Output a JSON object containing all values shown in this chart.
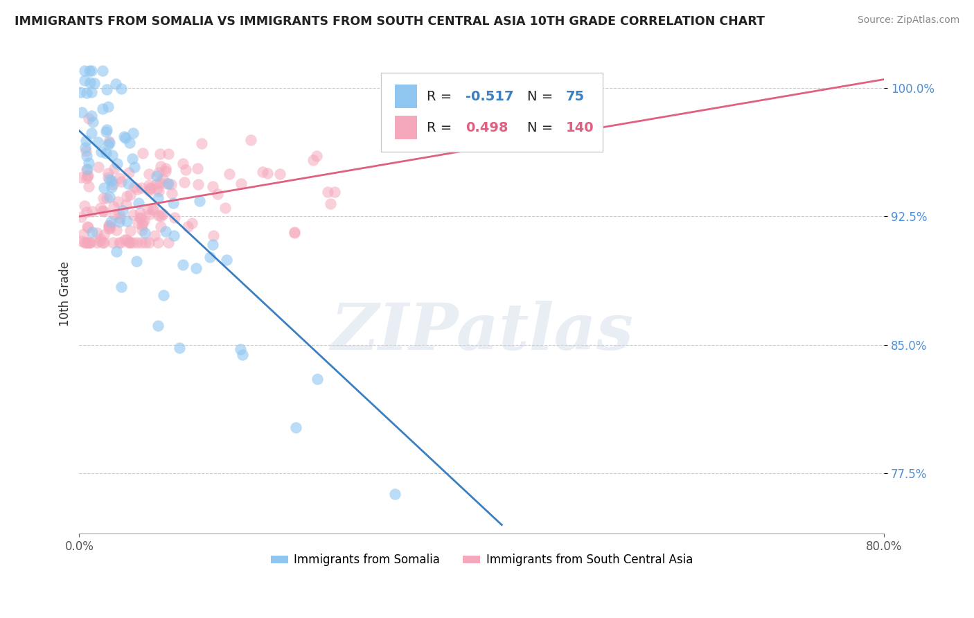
{
  "title": "IMMIGRANTS FROM SOMALIA VS IMMIGRANTS FROM SOUTH CENTRAL ASIA 10TH GRADE CORRELATION CHART",
  "source": "Source: ZipAtlas.com",
  "ylabel": "10th Grade",
  "xlim": [
    0.0,
    80.0
  ],
  "ylim": [
    74.0,
    102.0
  ],
  "yticks": [
    77.5,
    85.0,
    92.5,
    100.0
  ],
  "xticks": [
    0.0,
    80.0
  ],
  "R_blue": -0.517,
  "N_blue": 75,
  "R_pink": 0.498,
  "N_pink": 140,
  "blue_color": "#8ec6f0",
  "pink_color": "#f5a8bc",
  "blue_line_color": "#3a7fc1",
  "pink_line_color": "#e06080",
  "ytick_color": "#4a90d9",
  "legend_blue_label": "Immigrants from Somalia",
  "legend_pink_label": "Immigrants from South Central Asia",
  "watermark_text": "ZIPatlas",
  "background_color": "#ffffff",
  "grid_color": "#cccccc",
  "blue_trend_x0": 0.0,
  "blue_trend_y0": 97.5,
  "blue_trend_x1": 42.0,
  "blue_trend_y1": 74.5,
  "pink_trend_x0": 0.0,
  "pink_trend_y0": 92.5,
  "pink_trend_x1": 80.0,
  "pink_trend_y1": 100.5
}
